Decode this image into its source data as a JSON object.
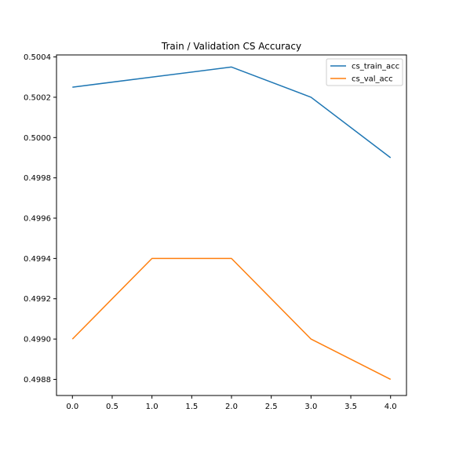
{
  "chart_data": {
    "type": "line",
    "title": "Train / Validation CS Accuracy",
    "xlabel": "",
    "ylabel": "",
    "x": [
      0,
      1,
      2,
      3,
      4
    ],
    "xlim": [
      -0.2,
      4.2
    ],
    "ylim": [
      0.49872,
      0.50041
    ],
    "xticks": [
      "0.0",
      "0.5",
      "1.0",
      "1.5",
      "2.0",
      "2.5",
      "3.0",
      "3.5",
      "4.0"
    ],
    "yticks": [
      "0.4988",
      "0.4990",
      "0.4992",
      "0.4994",
      "0.4996",
      "0.4998",
      "0.5000",
      "0.5002",
      "0.5004"
    ],
    "grid": false,
    "legend_position": "upper-right",
    "series": [
      {
        "name": "cs_train_acc",
        "color": "#1f77b4",
        "values": [
          0.50025,
          0.5003,
          0.50035,
          0.5002,
          0.4999
        ]
      },
      {
        "name": "cs_val_acc",
        "color": "#ff7f0e",
        "values": [
          0.499,
          0.4994,
          0.4994,
          0.499,
          0.4988
        ]
      }
    ]
  }
}
